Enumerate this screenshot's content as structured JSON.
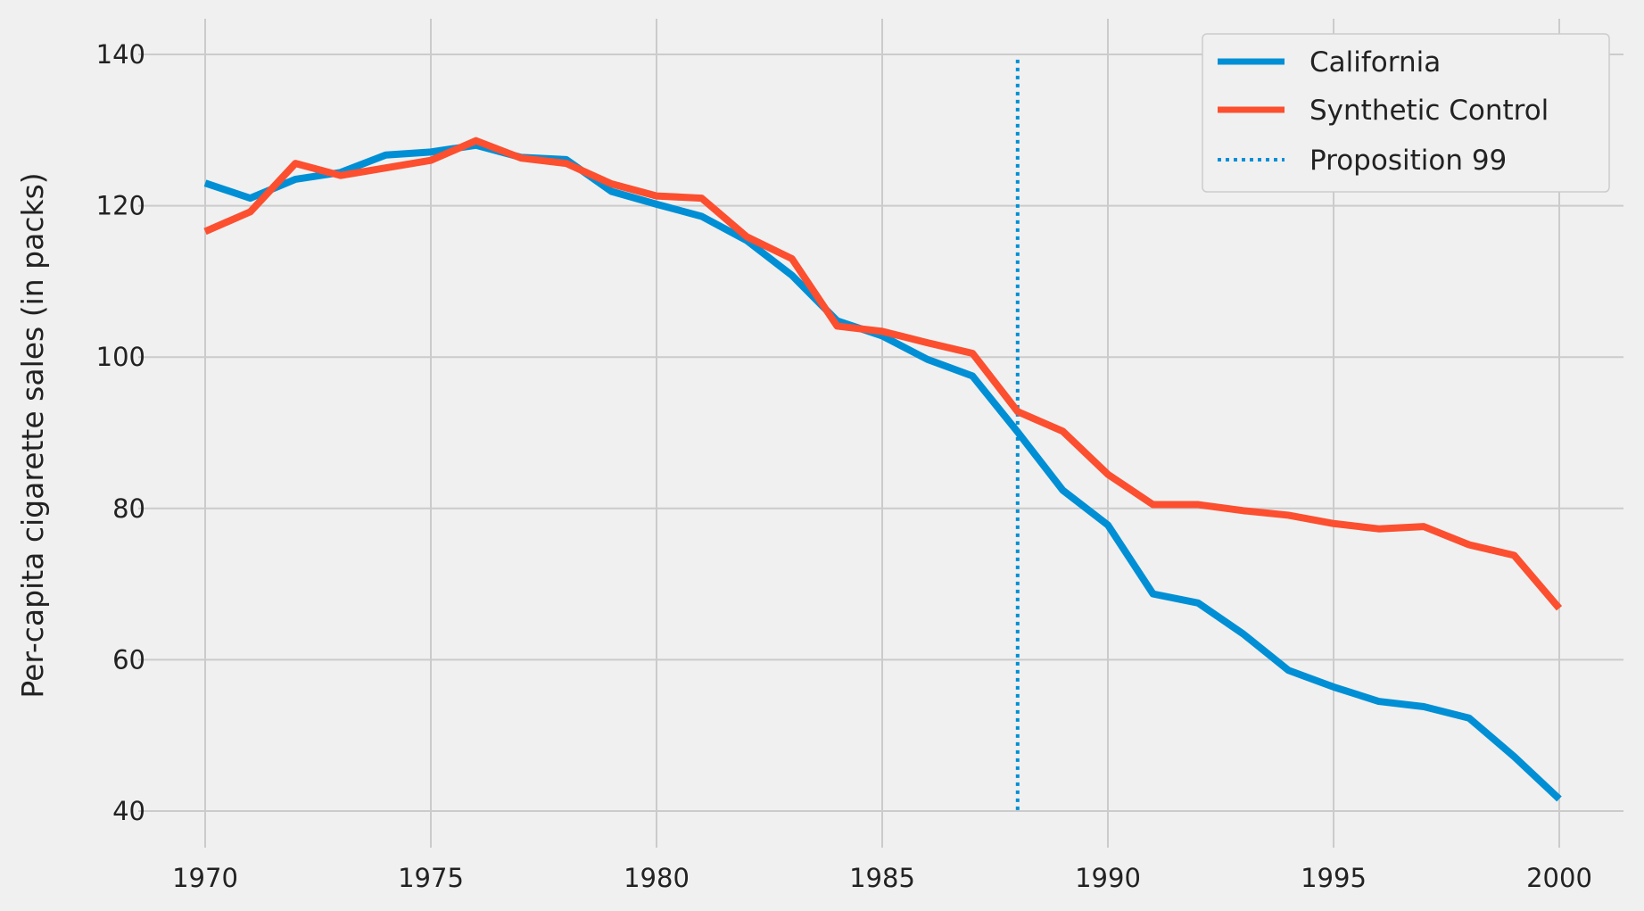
{
  "chart_data": {
    "type": "line",
    "title": "",
    "xlabel": "",
    "ylabel": "Per-capita cigarette sales (in packs)",
    "xlim": [
      1968.5,
      2001.5
    ],
    "ylim": [
      37,
      145
    ],
    "xticks": [
      1970,
      1975,
      1980,
      1985,
      1990,
      1995,
      2000
    ],
    "yticks": [
      40,
      60,
      80,
      100,
      120,
      140
    ],
    "grid": true,
    "legend_position": "top-right",
    "x": [
      1970,
      1971,
      1972,
      1973,
      1974,
      1975,
      1976,
      1977,
      1978,
      1979,
      1980,
      1981,
      1982,
      1983,
      1984,
      1985,
      1986,
      1987,
      1988,
      1989,
      1990,
      1991,
      1992,
      1993,
      1994,
      1995,
      1996,
      1997,
      1998,
      1999,
      2000
    ],
    "series": [
      {
        "name": "California",
        "color": "#008fd5",
        "values": [
          123.0,
          121.0,
          123.5,
          124.4,
          126.7,
          127.1,
          128.0,
          126.4,
          126.1,
          121.9,
          120.2,
          118.6,
          115.4,
          110.8,
          104.8,
          102.8,
          99.7,
          97.5,
          90.1,
          82.4,
          77.8,
          68.7,
          67.5,
          63.4,
          58.6,
          56.4,
          54.5,
          53.8,
          52.3,
          47.2,
          41.6
        ]
      },
      {
        "name": "Synthetic Control",
        "color": "#fc4f30",
        "values": [
          116.6,
          119.2,
          125.6,
          124.0,
          125.0,
          126.0,
          128.6,
          126.3,
          125.6,
          122.9,
          121.3,
          121.0,
          115.9,
          113.0,
          104.1,
          103.4,
          101.9,
          100.5,
          92.8,
          90.2,
          84.5,
          80.5,
          80.5,
          79.7,
          79.1,
          78.0,
          77.3,
          77.6,
          75.2,
          73.8,
          66.8
        ]
      }
    ],
    "vlines": [
      {
        "name": "Proposition 99",
        "x": 1988,
        "ymin": 40,
        "ymax": 139.3,
        "color": "#008fd5",
        "style": "dotted"
      }
    ]
  }
}
